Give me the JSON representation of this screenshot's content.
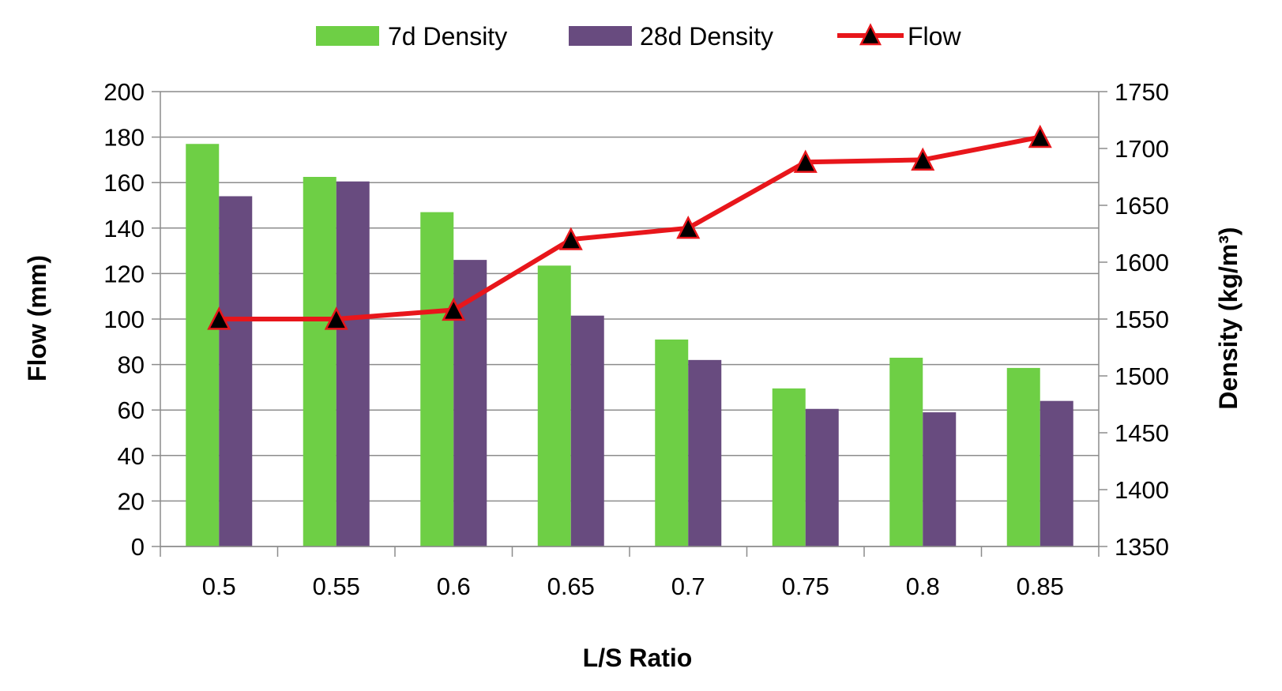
{
  "chart_data": {
    "type": "bar+line",
    "title": "",
    "xlabel": "L/S Ratio",
    "ylabel": "Flow (mm)",
    "y2label": "Density (kg/m³)",
    "categories": [
      "0.5",
      "0.55",
      "0.6",
      "0.65",
      "0.7",
      "0.75",
      "0.8",
      "0.85"
    ],
    "ylim": [
      0,
      200
    ],
    "yticks": [
      "0",
      "20",
      "40",
      "60",
      "80",
      "100",
      "120",
      "140",
      "160",
      "180",
      "200"
    ],
    "y2lim": [
      1350,
      1750
    ],
    "y2ticks": [
      "1350",
      "1400",
      "1450",
      "1500",
      "1550",
      "1600",
      "1650",
      "1700",
      "1750"
    ],
    "grid": true,
    "legend_position": "top-center",
    "series": [
      {
        "name": "7d Density",
        "type": "bar",
        "axis": "right",
        "color": "#6ecf45",
        "values": [
          1704,
          1675,
          1644,
          1597,
          1532,
          1489,
          1516,
          1507
        ]
      },
      {
        "name": "28d Density",
        "type": "bar",
        "axis": "right",
        "color": "#684b7f",
        "values": [
          1658,
          1671,
          1602,
          1553,
          1514,
          1471,
          1468,
          1478
        ]
      },
      {
        "name": "Flow",
        "type": "line",
        "axis": "left",
        "color": "#e8161b",
        "marker": "triangle",
        "marker_color": "#000000",
        "values": [
          100,
          100,
          104,
          135,
          140,
          169,
          170,
          180
        ]
      }
    ]
  }
}
